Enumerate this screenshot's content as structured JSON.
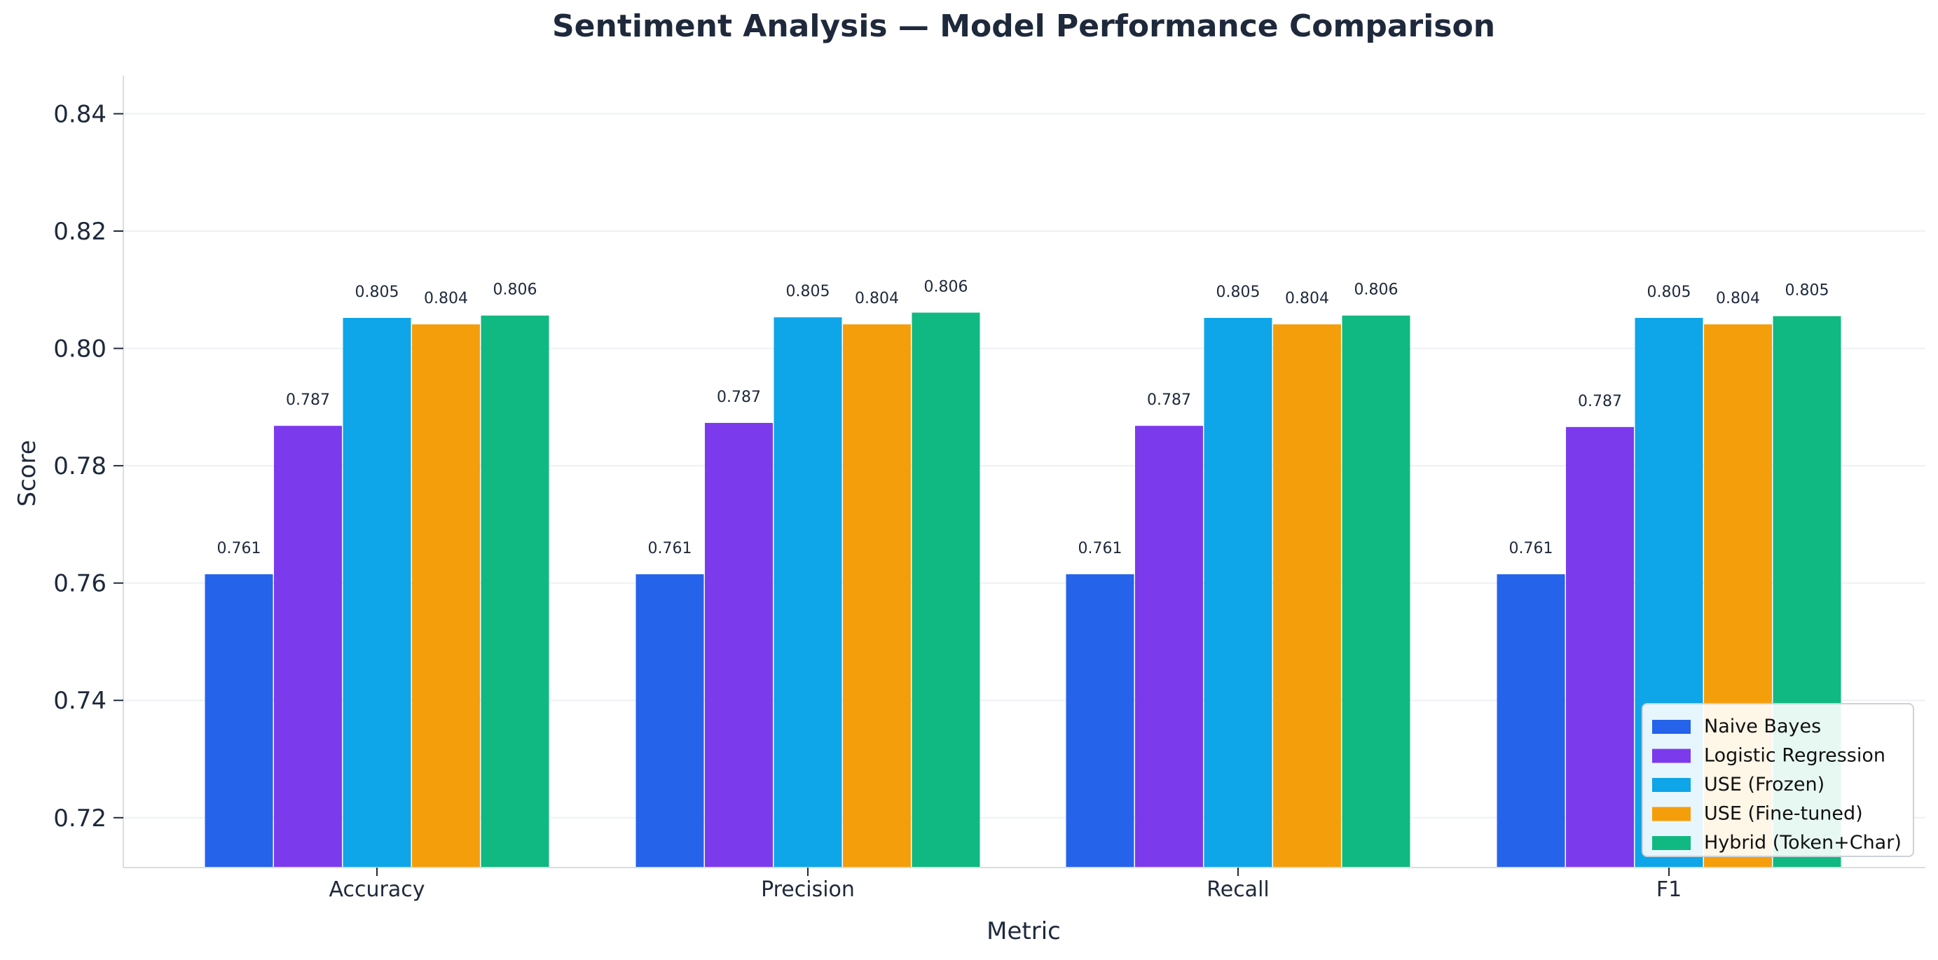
{
  "chart_data": {
    "type": "bar",
    "title": "Sentiment Analysis — Model Performance Comparison",
    "xlabel": "Metric",
    "ylabel": "Score",
    "categories": [
      "Accuracy",
      "Precision",
      "Recall",
      "F1"
    ],
    "ylim": [
      0.7115,
      0.8465
    ],
    "yticks": [
      0.72,
      0.74,
      0.76,
      0.78,
      0.8,
      0.82,
      0.84
    ],
    "ytick_labels": [
      "0.72",
      "0.74",
      "0.76",
      "0.78",
      "0.80",
      "0.82",
      "0.84"
    ],
    "grid": "horizontal",
    "legend_position": "bottom-right",
    "series": [
      {
        "name": "Naive Bayes",
        "color": "#2563EB",
        "values": [
          0.7615,
          0.7615,
          0.7615,
          0.7615
        ],
        "labels": [
          "0.761",
          "0.761",
          "0.761",
          "0.761"
        ]
      },
      {
        "name": "Logistic Regression",
        "color": "#7C3AED",
        "values": [
          0.7868,
          0.7873,
          0.7868,
          0.7866
        ],
        "labels": [
          "0.787",
          "0.787",
          "0.787",
          "0.787"
        ]
      },
      {
        "name": "USE (Frozen)",
        "color": "#0EA5E9",
        "values": [
          0.8052,
          0.8053,
          0.8052,
          0.8052
        ],
        "labels": [
          "0.805",
          "0.805",
          "0.805",
          "0.805"
        ]
      },
      {
        "name": "USE (Fine-tuned)",
        "color": "#F59E0B",
        "values": [
          0.8041,
          0.8041,
          0.8041,
          0.8041
        ],
        "labels": [
          "0.804",
          "0.804",
          "0.804",
          "0.804"
        ]
      },
      {
        "name": "Hybrid (Token+Char)",
        "color": "#10B981",
        "values": [
          0.8056,
          0.8061,
          0.8056,
          0.8055
        ],
        "labels": [
          "0.806",
          "0.806",
          "0.806",
          "0.805"
        ]
      }
    ]
  }
}
